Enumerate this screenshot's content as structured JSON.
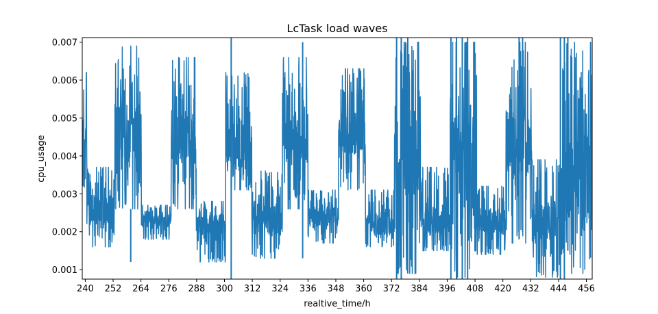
{
  "chart_data": {
    "type": "line",
    "title": "LcTask load waves",
    "xlabel": "realtive_time/h",
    "ylabel": "cpu_usage",
    "xlim": [
      238.7,
      458.5
    ],
    "ylim": [
      0.00075,
      0.00712
    ],
    "xticks": [
      240,
      252,
      264,
      276,
      288,
      300,
      312,
      324,
      336,
      348,
      360,
      372,
      384,
      396,
      408,
      420,
      432,
      444,
      456
    ],
    "yticks": [
      0.001,
      0.002,
      0.003,
      0.004,
      0.005,
      0.006,
      0.007
    ],
    "ytick_labels": [
      "0.001",
      "0.002",
      "0.003",
      "0.004",
      "0.005",
      "0.006",
      "0.007"
    ],
    "grid": false,
    "series": [
      {
        "color": "#1f77b4",
        "segments": [
          {
            "x0": 238.7,
            "x1": 240.7,
            "base": 0.0045,
            "lo": 0.0029,
            "hi": 0.0062
          },
          {
            "x0": 240.7,
            "x1": 252.8,
            "base": 0.0026,
            "lo": 0.0016,
            "hi": 0.0037
          },
          {
            "x0": 252.8,
            "x1": 264.2,
            "base": 0.0047,
            "lo": 0.0026,
            "hi": 0.0069
          },
          {
            "x0": 264.2,
            "x1": 277.0,
            "base": 0.0023,
            "lo": 0.0018,
            "hi": 0.0027
          },
          {
            "x0": 277.0,
            "x1": 287.8,
            "base": 0.0045,
            "lo": 0.0026,
            "hi": 0.0066
          },
          {
            "x0": 287.8,
            "x1": 300.5,
            "base": 0.0022,
            "lo": 0.0012,
            "hi": 0.0028
          },
          {
            "x0": 300.5,
            "x1": 311.8,
            "base": 0.0043,
            "lo": 0.0031,
            "hi": 0.0062
          },
          {
            "x0": 311.8,
            "x1": 325.0,
            "base": 0.0023,
            "lo": 0.0013,
            "hi": 0.0036
          },
          {
            "x0": 325.0,
            "x1": 336.0,
            "base": 0.0046,
            "lo": 0.0026,
            "hi": 0.0066
          },
          {
            "x0": 336.0,
            "x1": 349.2,
            "base": 0.0024,
            "lo": 0.0017,
            "hi": 0.0031
          },
          {
            "x0": 349.2,
            "x1": 360.8,
            "base": 0.0046,
            "lo": 0.0031,
            "hi": 0.0063
          },
          {
            "x0": 360.8,
            "x1": 373.3,
            "base": 0.0022,
            "lo": 0.0016,
            "hi": 0.0031
          },
          {
            "x0": 373.3,
            "x1": 384.5,
            "base": 0.004,
            "lo": 0.0009,
            "hi": 0.007
          },
          {
            "x0": 384.5,
            "x1": 397.3,
            "base": 0.0023,
            "lo": 0.0015,
            "hi": 0.0037
          },
          {
            "x0": 397.3,
            "x1": 408.7,
            "base": 0.004,
            "lo": 0.0008,
            "hi": 0.007
          },
          {
            "x0": 408.7,
            "x1": 421.3,
            "base": 0.0023,
            "lo": 0.0014,
            "hi": 0.0032
          },
          {
            "x0": 421.3,
            "x1": 432.5,
            "base": 0.0043,
            "lo": 0.0017,
            "hi": 0.007
          },
          {
            "x0": 432.5,
            "x1": 445.5,
            "base": 0.0023,
            "lo": 0.0008,
            "hi": 0.0039
          },
          {
            "x0": 445.5,
            "x1": 458.5,
            "base": 0.0035,
            "lo": 0.0009,
            "hi": 0.007
          }
        ],
        "spikes": [
          {
            "x": 302.9,
            "lo": 0.00075,
            "hi": 0.00712
          },
          {
            "x": 333.7,
            "lo": 0.0013,
            "hi": 0.007
          },
          {
            "x": 259.6,
            "lo": 0.0012,
            "hi": 0.0026
          },
          {
            "x": 298.5,
            "lo": 0.0012,
            "hi": 0.0024
          },
          {
            "x": 374.2,
            "lo": 0.00075,
            "hi": 0.00712
          },
          {
            "x": 376.2,
            "lo": 0.00075,
            "hi": 0.00712
          },
          {
            "x": 379.0,
            "lo": 0.0009,
            "hi": 0.00712
          },
          {
            "x": 397.6,
            "lo": 0.00075,
            "hi": 0.00712
          },
          {
            "x": 400.0,
            "lo": 0.00075,
            "hi": 0.00712
          },
          {
            "x": 402.5,
            "lo": 0.00075,
            "hi": 0.00712
          },
          {
            "x": 404.8,
            "lo": 0.00075,
            "hi": 0.00712
          },
          {
            "x": 427.0,
            "lo": 0.0018,
            "hi": 0.00712
          },
          {
            "x": 428.5,
            "lo": 0.002,
            "hi": 0.00712
          },
          {
            "x": 444.8,
            "lo": 0.00075,
            "hi": 0.00712
          },
          {
            "x": 446.5,
            "lo": 0.00075,
            "hi": 0.00712
          },
          {
            "x": 448.0,
            "lo": 0.0015,
            "hi": 0.00712
          }
        ]
      }
    ]
  }
}
